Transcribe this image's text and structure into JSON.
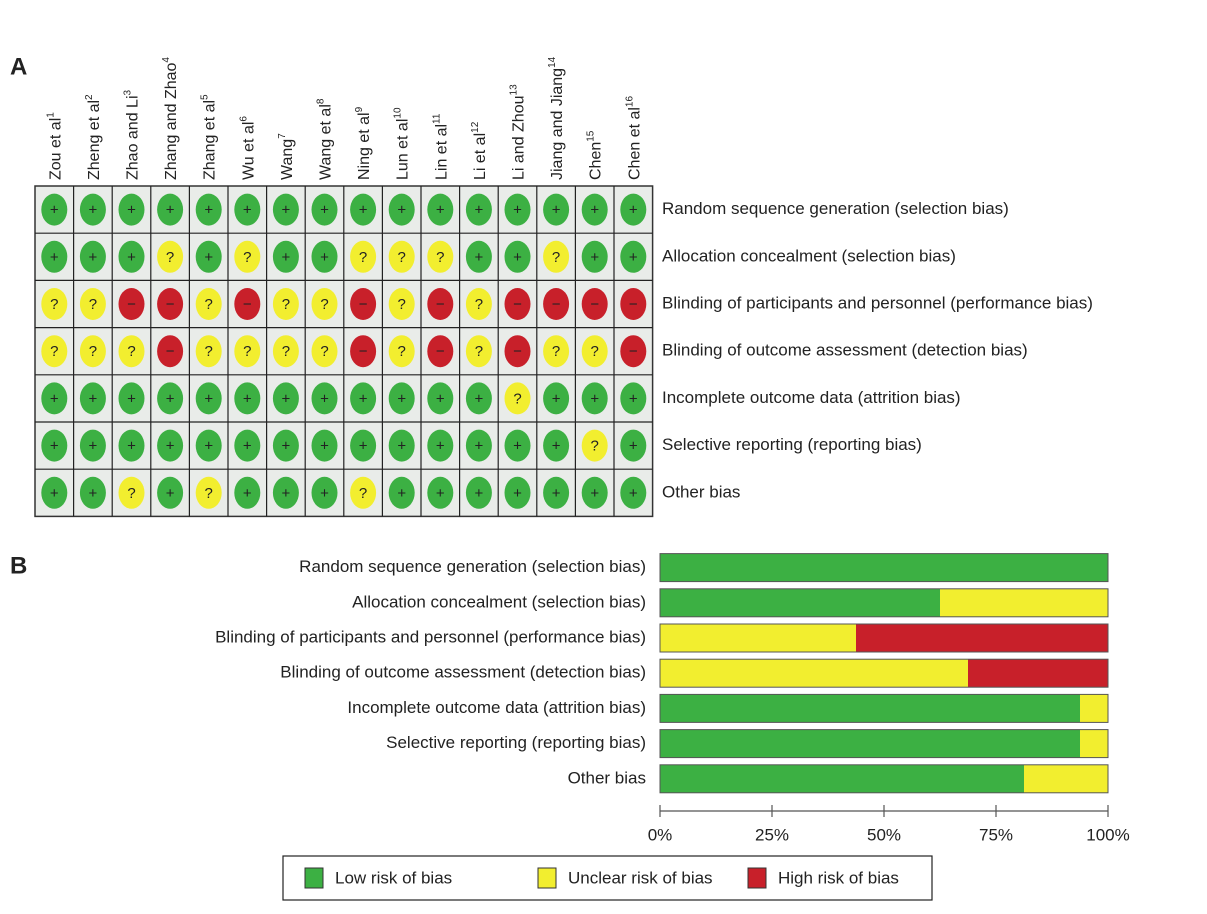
{
  "chart_data": [
    {
      "type": "risk-grid",
      "panel": "A",
      "studies": [
        {
          "name": "Zou et al",
          "ref": "1"
        },
        {
          "name": "Zheng et al",
          "ref": "2"
        },
        {
          "name": "Zhao and Li",
          "ref": "3"
        },
        {
          "name": "Zhang and Zhao",
          "ref": "4"
        },
        {
          "name": "Zhang et al",
          "ref": "5"
        },
        {
          "name": "Wu et al",
          "ref": "6"
        },
        {
          "name": "Wang",
          "ref": "7"
        },
        {
          "name": "Wang et al",
          "ref": "8"
        },
        {
          "name": "Ning et al",
          "ref": "9"
        },
        {
          "name": "Lun et al",
          "ref": "10"
        },
        {
          "name": "Lin et al",
          "ref": "11"
        },
        {
          "name": "Li et al",
          "ref": "12"
        },
        {
          "name": "Li and Zhou",
          "ref": "13"
        },
        {
          "name": "Jiang and Jiang",
          "ref": "14"
        },
        {
          "name": "Chen",
          "ref": "15"
        },
        {
          "name": "Chen et al",
          "ref": "16"
        }
      ],
      "domains": [
        "Random sequence generation (selection bias)",
        "Allocation concealment (selection bias)",
        "Blinding of participants and personnel (performance bias)",
        "Blinding of outcome assessment (detection bias)",
        "Incomplete outcome data (attrition bias)",
        "Selective reporting (reporting bias)",
        "Other bias"
      ],
      "cells": [
        [
          "+",
          "+",
          "+",
          "+",
          "+",
          "+",
          "+",
          "+",
          "+",
          "+",
          "+",
          "+",
          "+",
          "+",
          "+",
          "+"
        ],
        [
          "+",
          "+",
          "+",
          "?",
          "+",
          "?",
          "+",
          "+",
          "?",
          "?",
          "?",
          "+",
          "+",
          "?",
          "+",
          "+"
        ],
        [
          "?",
          "?",
          "−",
          "−",
          "?",
          "−",
          "?",
          "?",
          "−",
          "?",
          "−",
          "?",
          "−",
          "−",
          "−",
          "−"
        ],
        [
          "?",
          "?",
          "?",
          "−",
          "?",
          "?",
          "?",
          "?",
          "−",
          "?",
          "−",
          "?",
          "−",
          "?",
          "?",
          "−"
        ],
        [
          "+",
          "+",
          "+",
          "+",
          "+",
          "+",
          "+",
          "+",
          "+",
          "+",
          "+",
          "+",
          "?",
          "+",
          "+",
          "+"
        ],
        [
          "+",
          "+",
          "+",
          "+",
          "+",
          "+",
          "+",
          "+",
          "+",
          "+",
          "+",
          "+",
          "+",
          "+",
          "?",
          "+"
        ],
        [
          "+",
          "+",
          "?",
          "+",
          "?",
          "+",
          "+",
          "+",
          "?",
          "+",
          "+",
          "+",
          "+",
          "+",
          "+",
          "+"
        ]
      ]
    },
    {
      "type": "bar",
      "panel": "B",
      "orientation": "horizontal",
      "stacked": true,
      "categories": [
        "Random sequence generation (selection bias)",
        "Allocation concealment (selection bias)",
        "Blinding of participants and personnel (performance bias)",
        "Blinding of outcome assessment (detection bias)",
        "Incomplete outcome data (attrition bias)",
        "Selective reporting (reporting bias)",
        "Other bias"
      ],
      "series": [
        {
          "name": "Low risk of bias",
          "symbol": "+",
          "color": "#3cb043",
          "values": [
            100,
            62.5,
            0,
            0,
            93.75,
            93.75,
            81.25
          ]
        },
        {
          "name": "Unclear risk of bias",
          "symbol": "?",
          "color": "#f2ee2f",
          "values": [
            0,
            37.5,
            43.75,
            68.75,
            6.25,
            6.25,
            18.75
          ]
        },
        {
          "name": "High risk of bias",
          "symbol": "−",
          "color": "#c8202a",
          "values": [
            0,
            0,
            56.25,
            31.25,
            0,
            0,
            0
          ]
        }
      ],
      "xlim": [
        0,
        100
      ],
      "xticks": [
        {
          "value": 0,
          "label": "0%"
        },
        {
          "value": 25,
          "label": "25%"
        },
        {
          "value": 50,
          "label": "50%"
        },
        {
          "value": 75,
          "label": "75%"
        },
        {
          "value": 100,
          "label": "100%"
        }
      ]
    }
  ]
}
